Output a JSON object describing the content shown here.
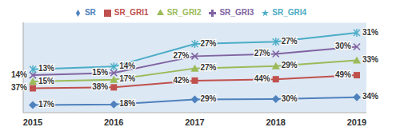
{
  "chart_data": {
    "type": "line",
    "stacked": true,
    "data_labels": true,
    "legend": "top",
    "grid": true,
    "tick_labels": "x",
    "categories": [
      "2015",
      "2016",
      "2017",
      "2018",
      "2019"
    ],
    "ylim": [
      0,
      200
    ],
    "yticks": [
      0,
      50,
      100,
      150,
      200
    ],
    "series": [
      {
        "name": "SR",
        "color": "#4f81bd",
        "marker": "diamond",
        "values": [
          17,
          18,
          29,
          30,
          34
        ],
        "value_labels": [
          "17%",
          "18%",
          "29%",
          "30%",
          "34%"
        ]
      },
      {
        "name": "SR_GRI1",
        "color": "#c0504d",
        "marker": "square",
        "values": [
          37,
          38,
          42,
          44,
          49
        ],
        "value_labels": [
          "37%",
          "38%",
          "42%",
          "44%",
          "49%"
        ]
      },
      {
        "name": "SR_GRI2",
        "color": "#9bbb59",
        "marker": "triangle",
        "values": [
          15,
          17,
          27,
          29,
          33
        ],
        "value_labels": [
          "15%",
          "17%",
          "27%",
          "29%",
          "33%"
        ]
      },
      {
        "name": "SR_GRI3",
        "color": "#8064a2",
        "marker": "cross",
        "values": [
          14,
          15,
          27,
          27,
          30
        ],
        "value_labels": [
          "14%",
          "15%",
          "27%",
          "27%",
          "30%"
        ]
      },
      {
        "name": "SR_GRI4",
        "color": "#4bacc6",
        "marker": "star",
        "values": [
          13,
          14,
          27,
          27,
          31
        ],
        "value_labels": [
          "13%",
          "14%",
          "27%",
          "27%",
          "31%"
        ]
      }
    ]
  }
}
